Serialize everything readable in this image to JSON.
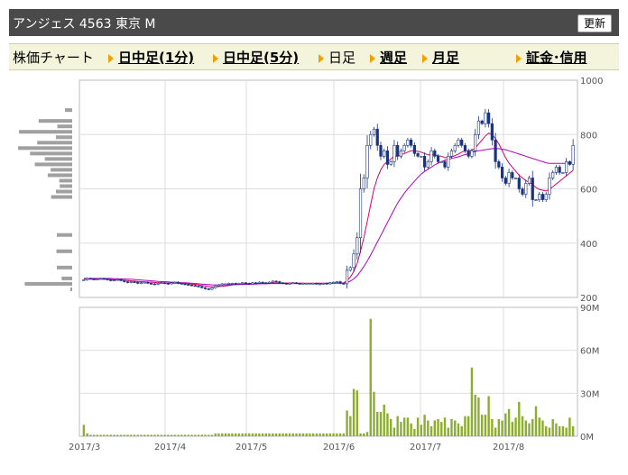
{
  "header": {
    "title": "アンジェス 4563 東京 M",
    "refresh_label": "更新"
  },
  "nav": {
    "chart_label": "株価チャート",
    "items": [
      {
        "label": "日中足(1分)",
        "link": true
      },
      {
        "label": "日中足(5分)",
        "link": true
      },
      {
        "label": "日足",
        "link": false
      },
      {
        "label": "週足",
        "link": true
      },
      {
        "label": "月足",
        "link": true
      },
      {
        "label": "証金･信用",
        "link": true
      }
    ]
  },
  "colors": {
    "up": "#ffffff",
    "down": "#1a3380",
    "ma_short": "#d4006e",
    "ma_long": "#b000c0",
    "volume": "#8cad2e",
    "profile": "#a0a0a0"
  },
  "chart_data": {
    "type": "candlestick",
    "x_ticks": [
      "2017/3",
      "2017/4",
      "2017/5",
      "2017/6",
      "2017/7",
      "2017/8"
    ],
    "price_ticks": [
      "1000",
      "800",
      "600",
      "400",
      "200"
    ],
    "volume_ticks": [
      "90M",
      "60M",
      "30M",
      "0M"
    ],
    "price_ylim": [
      200,
      1000
    ],
    "volume_ylim": [
      0,
      90
    ],
    "price_close": [
      265,
      270,
      268,
      266,
      268,
      270,
      268,
      265,
      262,
      264,
      266,
      262,
      258,
      255,
      258,
      256,
      252,
      254,
      256,
      252,
      250,
      248,
      252,
      254,
      252,
      250,
      254,
      256,
      252,
      250,
      248,
      246,
      244,
      242,
      240,
      236,
      232,
      230,
      236,
      242,
      246,
      250,
      250,
      252,
      252,
      250,
      252,
      254,
      252,
      250,
      254,
      252,
      256,
      254,
      252,
      256,
      260,
      258,
      254,
      252,
      250,
      252,
      254,
      252,
      250,
      252,
      252,
      252,
      252,
      250,
      250,
      252,
      250,
      254,
      256,
      258,
      252,
      250,
      300,
      310,
      360,
      420,
      600,
      640,
      760,
      800,
      820,
      760,
      720,
      740,
      690,
      700,
      760,
      720,
      740,
      760,
      780,
      760,
      730,
      720,
      720,
      680,
      700,
      740,
      720,
      700,
      700,
      680,
      720,
      740,
      760,
      780,
      760,
      740,
      720,
      740,
      800,
      850,
      840,
      880,
      840,
      780,
      700,
      680,
      640,
      620,
      660,
      640,
      640,
      600,
      580,
      620,
      640,
      560,
      560,
      580,
      560,
      580,
      640,
      660,
      680,
      660,
      660,
      700,
      690,
      760
    ],
    "price_ma_short": [
      268,
      268,
      268,
      267,
      267,
      267,
      267,
      267,
      266,
      265,
      265,
      264,
      263,
      262,
      261,
      260,
      259,
      258,
      257,
      256,
      256,
      255,
      254,
      254,
      253,
      253,
      252,
      252,
      252,
      251,
      251,
      250,
      249,
      248,
      246,
      244,
      242,
      240,
      239,
      239,
      240,
      241,
      242,
      244,
      246,
      247,
      248,
      249,
      250,
      250,
      251,
      251,
      252,
      252,
      252,
      253,
      253,
      253,
      253,
      253,
      253,
      253,
      253,
      253,
      252,
      252,
      252,
      252,
      252,
      252,
      252,
      252,
      252,
      252,
      252,
      253,
      253,
      253,
      262,
      275,
      295,
      325,
      370,
      420,
      480,
      540,
      600,
      640,
      670,
      690,
      700,
      710,
      720,
      720,
      725,
      730,
      735,
      740,
      740,
      738,
      735,
      730,
      725,
      725,
      725,
      722,
      720,
      715,
      715,
      718,
      722,
      728,
      735,
      740,
      740,
      742,
      750,
      765,
      780,
      795,
      805,
      800,
      785,
      765,
      740,
      715,
      695,
      680,
      665,
      650,
      640,
      630,
      625,
      615,
      605,
      598,
      595,
      592,
      598,
      608,
      618,
      628,
      638,
      648,
      658,
      668
    ],
    "price_ma_long": [
      270,
      270,
      270,
      270,
      270,
      270,
      270,
      270,
      270,
      269,
      269,
      268,
      268,
      267,
      267,
      266,
      265,
      264,
      263,
      262,
      261,
      260,
      259,
      258,
      258,
      257,
      256,
      256,
      255,
      254,
      254,
      253,
      252,
      251,
      250,
      249,
      248,
      247,
      246,
      246,
      246,
      246,
      246,
      246,
      247,
      247,
      247,
      248,
      248,
      248,
      249,
      249,
      250,
      250,
      250,
      251,
      251,
      251,
      251,
      251,
      251,
      251,
      251,
      251,
      251,
      251,
      251,
      251,
      251,
      251,
      251,
      251,
      252,
      252,
      252,
      252,
      252,
      252,
      255,
      260,
      268,
      280,
      296,
      314,
      334,
      356,
      380,
      404,
      428,
      452,
      476,
      500,
      524,
      548,
      566,
      584,
      600,
      614,
      628,
      642,
      654,
      664,
      672,
      680,
      688,
      695,
      700,
      705,
      708,
      712,
      715,
      718,
      722,
      726,
      730,
      734,
      738,
      740,
      742,
      744,
      746,
      748,
      748,
      748,
      746,
      744,
      740,
      736,
      732,
      728,
      724,
      720,
      716,
      712,
      708,
      704,
      700,
      696,
      694,
      694,
      694,
      694,
      694,
      694,
      695,
      696
    ],
    "volume": [
      8,
      2,
      1,
      1,
      1,
      1,
      1,
      1,
      1,
      1,
      1,
      1,
      1,
      1,
      1,
      1,
      1,
      1,
      1,
      1,
      1,
      1,
      1,
      1,
      1,
      1,
      1,
      1,
      1,
      1,
      1,
      1,
      1,
      1,
      1,
      1,
      1,
      1,
      1,
      2,
      2,
      2,
      2,
      2,
      2,
      2,
      2,
      2,
      2,
      2,
      2,
      2,
      2,
      2,
      2,
      2,
      2,
      2,
      2,
      2,
      2,
      2,
      2,
      2,
      2,
      2,
      2,
      2,
      2,
      2,
      2,
      2,
      2,
      2,
      2,
      2,
      2,
      2,
      18,
      14,
      33,
      32,
      2,
      2,
      3,
      82,
      31,
      17,
      17,
      22,
      16,
      12,
      6,
      14,
      10,
      13,
      13,
      9,
      5,
      13,
      8,
      15,
      11,
      7,
      11,
      12,
      10,
      13,
      6,
      12,
      11,
      9,
      7,
      14,
      14,
      48,
      29,
      27,
      15,
      15,
      28,
      12,
      6,
      12,
      11,
      16,
      19,
      10,
      13,
      24,
      14,
      11,
      9,
      12,
      21,
      13,
      11,
      7,
      6,
      12,
      9,
      7,
      7,
      6,
      13,
      7
    ]
  }
}
